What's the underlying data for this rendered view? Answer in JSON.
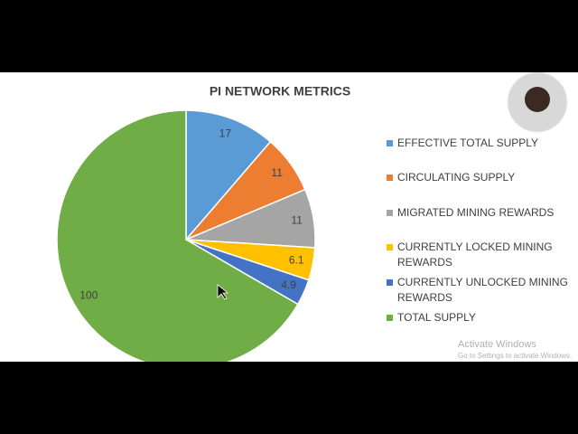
{
  "chart_data": {
    "type": "pie",
    "title": "PI NETWORK METRICS",
    "categories": [
      "EFFECTIVE TOTAL SUPPLY",
      "CIRCULATING SUPPLY",
      "MIGRATED MINING REWARDS",
      "CURRENTLY LOCKED MINING REWARDS",
      "CURRENTLY UNLOCKED MINING REWARDS",
      "TOTAL SUPPLY"
    ],
    "values": [
      17,
      11,
      11,
      6.1,
      4.9,
      100
    ],
    "colors": [
      "#5b9bd5",
      "#ed7d31",
      "#a5a5a5",
      "#ffc000",
      "#4472c4",
      "#70ad47"
    ],
    "legend": "right"
  },
  "watermark": {
    "title": "Activate Windows",
    "subtitle": "Go to Settings to activate Windows."
  }
}
